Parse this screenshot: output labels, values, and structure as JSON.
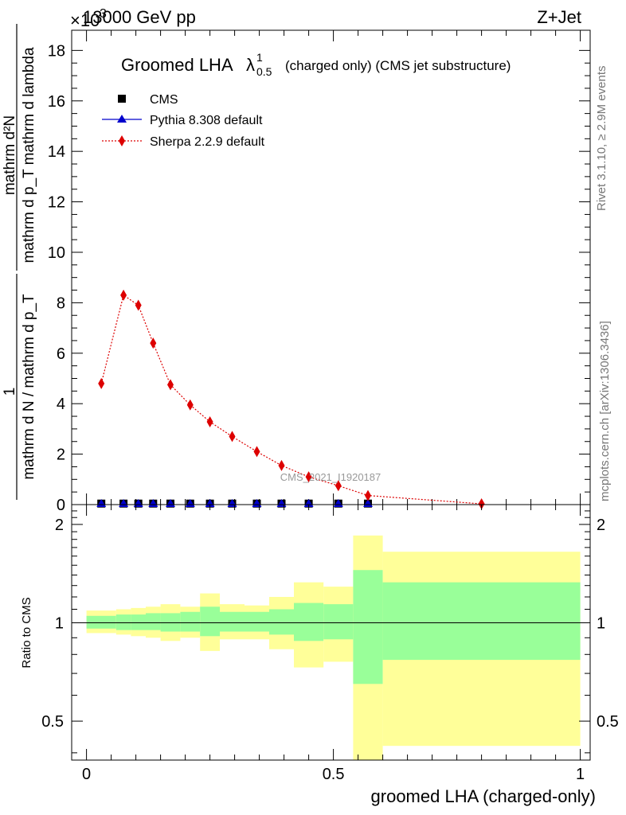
{
  "header": {
    "left": "13000 GeV pp",
    "right": "Z+Jet",
    "exponent_base": "×10",
    "exponent": "3"
  },
  "side": {
    "rivet": "Rivet 3.1.10, ≥ 2.9M events",
    "mcplots": "mcplots.cern.ch [arXiv:1306.3436]"
  },
  "watermark": "CMS_2021_I1920187",
  "chart_data": [
    {
      "type": "scatter",
      "title": "Groomed LHA",
      "title_symbol": "λ",
      "title_sup": "1",
      "title_sub": "0.5",
      "title_suffix": "(charged only) (CMS jet substructure)",
      "ylabel_numerator": "mathrm d²N",
      "ylabel_denominator": "mathrm d p_T mathrm d lambda",
      "ylabel_prefactor_numerator": "1",
      "ylabel_prefactor_denominator": "mathrm d N / mathrm d p_T",
      "ylabel_sub_T": "T",
      "ylim": [
        0,
        18800
      ],
      "yticks": [
        0,
        2,
        4,
        6,
        8,
        10,
        12,
        14,
        16,
        18
      ],
      "ytick_scale": 1000,
      "xlim": [
        -0.03,
        1.02
      ],
      "legend_position": "top-left",
      "series": [
        {
          "name": "CMS",
          "marker": "square",
          "color": "#000000",
          "x": [
            0.03,
            0.075,
            0.105,
            0.135,
            0.17,
            0.21,
            0.25,
            0.295,
            0.345,
            0.395,
            0.45,
            0.51,
            0.57
          ],
          "y": [
            40,
            40,
            40,
            40,
            40,
            40,
            40,
            40,
            40,
            40,
            40,
            40,
            40
          ]
        },
        {
          "name": "Pythia 8.308 default",
          "marker": "triangle",
          "color": "#0000cc",
          "x": [
            0.03,
            0.075,
            0.105,
            0.135,
            0.17,
            0.21,
            0.25,
            0.295,
            0.345,
            0.395,
            0.45,
            0.51,
            0.57
          ],
          "y": [
            30,
            30,
            30,
            30,
            30,
            30,
            30,
            30,
            30,
            30,
            30,
            30,
            30
          ]
        },
        {
          "name": "Sherpa 2.2.9 default",
          "marker": "diamond",
          "color": "#dd0000",
          "x": [
            0.03,
            0.075,
            0.105,
            0.135,
            0.17,
            0.21,
            0.25,
            0.295,
            0.345,
            0.395,
            0.45,
            0.51,
            0.57,
            0.8
          ],
          "y": [
            4800,
            8300,
            7900,
            6400,
            4750,
            3950,
            3280,
            2700,
            2100,
            1550,
            1100,
            750,
            360,
            30
          ]
        }
      ]
    },
    {
      "type": "area",
      "ylabel": "Ratio to CMS",
      "xlabel": "groomed LHA (charged-only)",
      "xlim": [
        -0.03,
        1.02
      ],
      "xticks": [
        "0",
        "0.5",
        "1"
      ],
      "xtick_values": [
        0,
        0.5,
        1
      ],
      "ylim": [
        0.38,
        2.3
      ],
      "ylog": true,
      "yticks": [
        "0.5",
        "1",
        "2"
      ],
      "ytick_values": [
        0.5,
        1,
        2
      ],
      "bins": [
        {
          "lo": 0.0,
          "hi": 0.06,
          "green": [
            0.96,
            1.05
          ],
          "yellow": [
            0.93,
            1.09
          ]
        },
        {
          "lo": 0.06,
          "hi": 0.09,
          "green": [
            0.95,
            1.06
          ],
          "yellow": [
            0.92,
            1.1
          ]
        },
        {
          "lo": 0.09,
          "hi": 0.12,
          "green": [
            0.95,
            1.06
          ],
          "yellow": [
            0.91,
            1.11
          ]
        },
        {
          "lo": 0.12,
          "hi": 0.15,
          "green": [
            0.95,
            1.07
          ],
          "yellow": [
            0.9,
            1.12
          ]
        },
        {
          "lo": 0.15,
          "hi": 0.19,
          "green": [
            0.94,
            1.07
          ],
          "yellow": [
            0.88,
            1.14
          ]
        },
        {
          "lo": 0.19,
          "hi": 0.23,
          "green": [
            0.94,
            1.08
          ],
          "yellow": [
            0.9,
            1.12
          ]
        },
        {
          "lo": 0.23,
          "hi": 0.27,
          "green": [
            0.91,
            1.12
          ],
          "yellow": [
            0.82,
            1.23
          ]
        },
        {
          "lo": 0.27,
          "hi": 0.32,
          "green": [
            0.94,
            1.08
          ],
          "yellow": [
            0.89,
            1.14
          ]
        },
        {
          "lo": 0.32,
          "hi": 0.37,
          "green": [
            0.94,
            1.08
          ],
          "yellow": [
            0.89,
            1.13
          ]
        },
        {
          "lo": 0.37,
          "hi": 0.42,
          "green": [
            0.92,
            1.1
          ],
          "yellow": [
            0.83,
            1.2
          ]
        },
        {
          "lo": 0.42,
          "hi": 0.48,
          "green": [
            0.88,
            1.15
          ],
          "yellow": [
            0.73,
            1.33
          ]
        },
        {
          "lo": 0.48,
          "hi": 0.54,
          "green": [
            0.89,
            1.14
          ],
          "yellow": [
            0.76,
            1.29
          ]
        },
        {
          "lo": 0.54,
          "hi": 0.6,
          "green": [
            0.65,
            1.45
          ],
          "yellow": [
            0.37,
            1.85
          ]
        },
        {
          "lo": 0.6,
          "hi": 1.0,
          "green": [
            0.77,
            1.33
          ],
          "yellow": [
            0.42,
            1.65
          ]
        }
      ]
    }
  ]
}
